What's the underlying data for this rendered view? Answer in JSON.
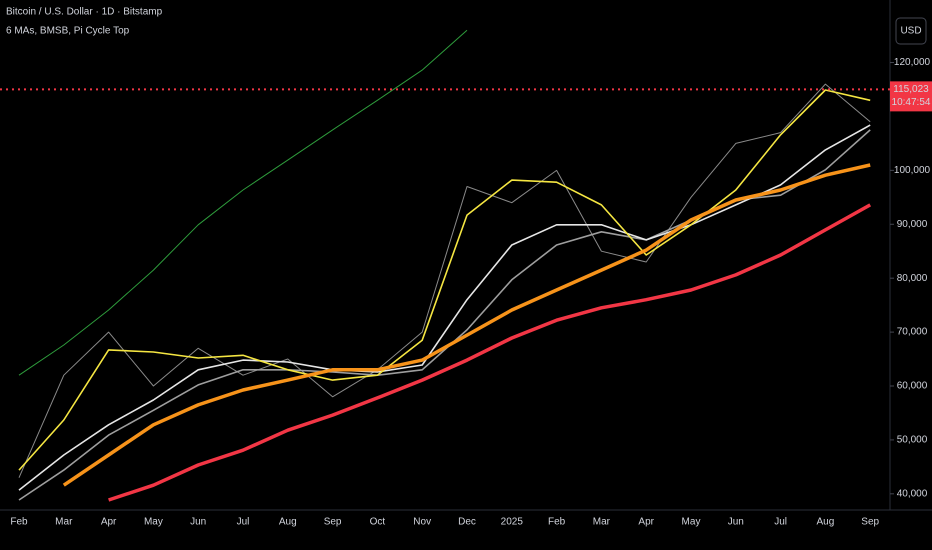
{
  "chart_data": {
    "type": "line",
    "title": "Bitcoin / U.S. Dollar · 1D · Bitstamp",
    "subtitle": "6 MAs, BMSB, Pi Cycle Top",
    "currency": "USD",
    "last_price": {
      "value": 115023,
      "label": "115,023",
      "color": "#f23645"
    },
    "countdown": "10:47:54",
    "categories": [
      "Feb",
      "Mar",
      "Apr",
      "May",
      "Jun",
      "Jul",
      "Aug",
      "Sep",
      "Oct",
      "Nov",
      "Dec",
      "2025",
      "Feb",
      "Mar",
      "Apr",
      "May",
      "Jun",
      "Jul",
      "Aug",
      "Sep"
    ],
    "series": [
      {
        "name": "Price",
        "color": "#8a8a8a",
        "values": [
          43000,
          62000,
          70000,
          60000,
          67000,
          62000,
          65000,
          58000,
          63000,
          70000,
          97000,
          94000,
          100000,
          85000,
          83000,
          95000,
          105000,
          107000,
          116000,
          109000
        ]
      },
      {
        "name": "Pi Cycle Top",
        "color": "#2e9c3c",
        "values": [
          62000,
          67600,
          74100,
          81500,
          89900,
          96350,
          101900,
          107500,
          113000,
          118600,
          126000,
          null,
          null,
          null,
          null,
          null,
          null,
          null,
          null,
          null
        ]
      },
      {
        "name": "BMSB lower",
        "color": "#9e9e9e",
        "values": [
          38850,
          44400,
          50900,
          55500,
          60200,
          63000,
          63000,
          62600,
          62000,
          63000,
          70400,
          79700,
          86150,
          88600,
          87100,
          90800,
          94500,
          95400,
          100100,
          107500
        ]
      },
      {
        "name": "BMSB upper",
        "color": "#e6e6e6",
        "values": [
          40700,
          47200,
          52800,
          57400,
          63000,
          64800,
          64450,
          63000,
          62600,
          63900,
          76000,
          86150,
          89900,
          89900,
          87100,
          89900,
          93600,
          97300,
          103800,
          108400
        ]
      },
      {
        "name": "MA yellow",
        "color": "#f5e642",
        "values": [
          44400,
          53700,
          66700,
          66300,
          65200,
          65700,
          63000,
          61100,
          62000,
          68500,
          91700,
          98200,
          97800,
          93600,
          84300,
          89900,
          96350,
          106600,
          114900,
          113000
        ]
      },
      {
        "name": "MA orange",
        "color": "#f7931a",
        "values": [
          null,
          41600,
          47200,
          52800,
          56500,
          59250,
          61100,
          63000,
          63000,
          64800,
          69450,
          74100,
          77800,
          81500,
          85200,
          90800,
          94500,
          96350,
          99100,
          101000
        ]
      },
      {
        "name": "MA red",
        "color": "#f23645",
        "values": [
          null,
          null,
          38850,
          41600,
          45350,
          48100,
          51800,
          54600,
          57800,
          61100,
          64800,
          68900,
          72200,
          74500,
          76000,
          77800,
          80600,
          84300,
          88950,
          93600
        ]
      }
    ],
    "ylim": [
      37000,
      131600
    ],
    "yticks": [
      {
        "value": 40000,
        "label": "40,000"
      },
      {
        "value": 50000,
        "label": "50,000"
      },
      {
        "value": 60000,
        "label": "60,000"
      },
      {
        "value": 70000,
        "label": "70,000"
      },
      {
        "value": 80000,
        "label": "80,000"
      },
      {
        "value": 90000,
        "label": "90,000"
      },
      {
        "value": 100000,
        "label": "100,000"
      },
      {
        "value": 120000,
        "label": "120,000"
      }
    ]
  }
}
